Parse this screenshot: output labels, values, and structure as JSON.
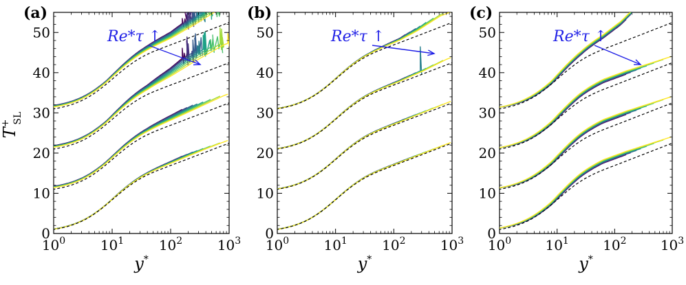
{
  "colors": {
    "viridis": [
      "#440154",
      "#46327e",
      "#365c8d",
      "#277f8e",
      "#1fa187",
      "#4ac16d",
      "#a0da39",
      "#fde725"
    ],
    "reference": "#000000",
    "annotation": "#1f1fe6"
  },
  "chart_data": [
    {
      "type": "line",
      "panel": "(a)",
      "xlabel": "y*",
      "ylabel": "T+SL",
      "xscale": "log",
      "xlim": [
        1,
        1000
      ],
      "ylim": [
        0,
        55
      ],
      "x_ticks": [
        1,
        10,
        100,
        1000
      ],
      "y_ticks": [
        0,
        10,
        20,
        30,
        40,
        50
      ],
      "annotation": "Re*τ ↑",
      "grid": false,
      "offsets": [
        0,
        10,
        20,
        30
      ],
      "deviation": {
        "0": [
          [
            0.9,
            0.1
          ],
          [
            1.6,
            0.55
          ],
          [
            2.1,
            1.05
          ],
          [
            2.3,
            1.25
          ],
          [
            2.6,
            1.45
          ]
        ],
        "1": [
          [
            0.9,
            0.7
          ],
          [
            1.6,
            1.5
          ],
          [
            2.1,
            2.5
          ],
          [
            2.5,
            3.3
          ],
          [
            2.9,
            4.2
          ]
        ],
        "2": [
          [
            0.9,
            0.8
          ],
          [
            1.6,
            2.2
          ],
          [
            2.0,
            4.0
          ],
          [
            2.4,
            6.5
          ],
          [
            2.9,
            9.0
          ]
        ],
        "3": [
          [
            0.9,
            0.8
          ],
          [
            1.6,
            2.0
          ],
          [
            2.0,
            3.0
          ],
          [
            2.4,
            5.0
          ],
          [
            2.95,
            8.5
          ]
        ]
      }
    },
    {
      "type": "line",
      "panel": "(b)",
      "xlabel": "y*",
      "xscale": "log",
      "xlim": [
        1,
        1000
      ],
      "ylim": [
        0,
        55
      ],
      "x_ticks": [
        1,
        10,
        100,
        1000
      ],
      "y_ticks": [
        0,
        10,
        20,
        30,
        40,
        50
      ],
      "annotation": "Re*τ ↑",
      "grid": false,
      "offsets": [
        0,
        10,
        20,
        30
      ],
      "deviation": {
        "0": [
          [
            0.9,
            0.05
          ],
          [
            1.6,
            0.25
          ],
          [
            2.1,
            0.35
          ],
          [
            2.5,
            0.45
          ],
          [
            2.9,
            0.5
          ]
        ],
        "1": [
          [
            0.9,
            0.1
          ],
          [
            1.6,
            0.35
          ],
          [
            2.1,
            0.5
          ],
          [
            2.5,
            0.7
          ],
          [
            2.9,
            0.9
          ]
        ],
        "2": [
          [
            0.9,
            0.1
          ],
          [
            1.6,
            0.4
          ],
          [
            2.1,
            0.7
          ],
          [
            2.5,
            1.3
          ],
          [
            2.9,
            2.5
          ]
        ],
        "3": [
          [
            0.9,
            0.1
          ],
          [
            1.6,
            0.5
          ],
          [
            2.1,
            1.1
          ],
          [
            2.4,
            2.3
          ],
          [
            2.8,
            5.0
          ]
        ]
      }
    },
    {
      "type": "line",
      "panel": "(c)",
      "xlabel": "y*",
      "xscale": "log",
      "xlim": [
        1,
        1000
      ],
      "ylim": [
        0,
        55
      ],
      "x_ticks": [
        1,
        10,
        100,
        1000
      ],
      "y_ticks": [
        0,
        10,
        20,
        30,
        40,
        50
      ],
      "annotation": "Re*τ ↑",
      "grid": false,
      "offsets": [
        0,
        10,
        20,
        30
      ],
      "deviation": {
        "0": [
          [
            0.9,
            0.35
          ],
          [
            1.4,
            1.5
          ],
          [
            1.8,
            2.1
          ],
          [
            2.2,
            2.0
          ],
          [
            2.6,
            1.6
          ],
          [
            3.0,
            1.2
          ]
        ],
        "1": [
          [
            0.9,
            0.35
          ],
          [
            1.4,
            1.5
          ],
          [
            1.8,
            2.1
          ],
          [
            2.2,
            2.0
          ],
          [
            2.6,
            1.6
          ],
          [
            3.0,
            1.2
          ]
        ],
        "2": [
          [
            0.9,
            0.35
          ],
          [
            1.4,
            1.5
          ],
          [
            1.8,
            2.1
          ],
          [
            2.2,
            2.0
          ],
          [
            2.6,
            1.6
          ],
          [
            3.0,
            1.2
          ]
        ],
        "3": [
          [
            0.9,
            0.4
          ],
          [
            1.4,
            1.8
          ],
          [
            1.8,
            3.2
          ],
          [
            2.1,
            4.8
          ],
          [
            2.3,
            6.5
          ],
          [
            2.5,
            8.5
          ]
        ]
      }
    }
  ]
}
